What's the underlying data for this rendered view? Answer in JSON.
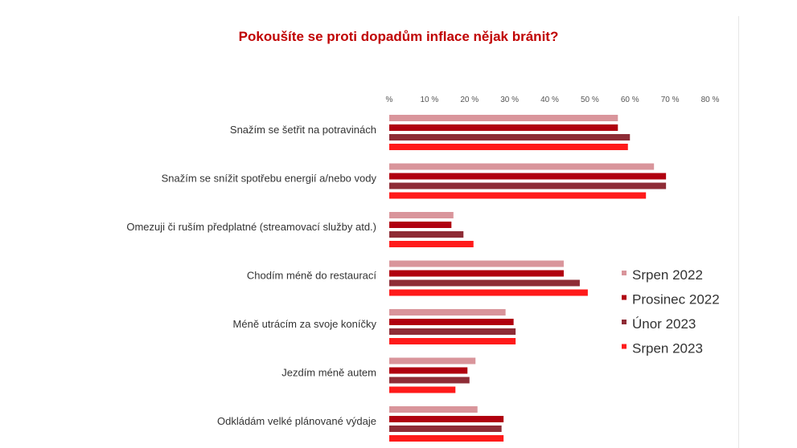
{
  "chart_data": {
    "type": "bar",
    "orientation": "horizontal",
    "title": "Pokoušíte se proti dopadům inflace nějak bránit?",
    "x_ticks": [
      "%",
      "10 %",
      "20 %",
      "30 %",
      "40 %",
      "50 %",
      "60 %",
      "70 %",
      "80 %"
    ],
    "xlim": [
      0,
      80
    ],
    "grid": false,
    "legend_position": "right",
    "categories": [
      "Snažím se šetřit na potravinách",
      "Snažím se snížit spotřebu energií a/nebo vody",
      "Omezuji či ruším předplatné (streamovací služby atd.)",
      "Chodím méně do restaurací",
      "Méně utrácím za svoje koníčky",
      "Jezdím méně autem",
      "Odkládám velké plánované výdaje"
    ],
    "series": [
      {
        "name": "Srpen 2022",
        "color": "#d9959b",
        "values": [
          57,
          66,
          16,
          43.5,
          29,
          21.5,
          22
        ]
      },
      {
        "name": "Prosinec 2022",
        "color": "#b0000f",
        "values": [
          57,
          69,
          15.5,
          43.5,
          31,
          19.5,
          28.5
        ]
      },
      {
        "name": "Únor 2023",
        "color": "#8e2c36",
        "values": [
          60,
          69,
          18.5,
          47.5,
          31.5,
          20,
          28
        ]
      },
      {
        "name": "Srpen 2023",
        "color": "#ff1a1a",
        "values": [
          59.5,
          64,
          21,
          49.5,
          31.5,
          16.5,
          28.5
        ]
      }
    ]
  }
}
